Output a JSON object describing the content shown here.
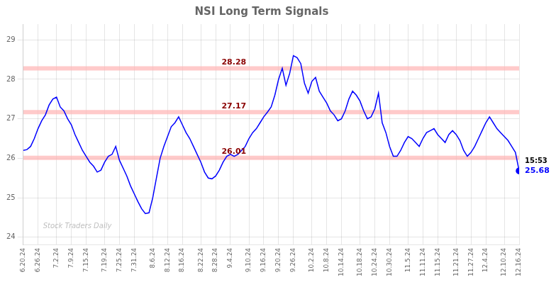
{
  "chart_data": {
    "type": "line",
    "title": "NSI Long Term Signals",
    "color": "blue",
    "grid": true,
    "ylim": [
      23.8,
      29.4
    ],
    "yticks": [
      24,
      25,
      26,
      27,
      28,
      29
    ],
    "hlines": [
      {
        "value": 26.01,
        "label": "26.01",
        "color": "#ffb3b3"
      },
      {
        "value": 27.17,
        "label": "27.17",
        "color": "#ffb3b3"
      },
      {
        "value": 28.28,
        "label": "28.28",
        "color": "#ffb3b3"
      }
    ],
    "last_label": "15:53",
    "last_value_label": "25.68",
    "watermark": "Stock Traders Daily",
    "categories": [
      "6.20.24",
      null,
      null,
      null,
      "6.26.24",
      null,
      null,
      null,
      null,
      "7.2.24",
      null,
      null,
      null,
      "7.9.24",
      null,
      null,
      null,
      "7.15.24",
      null,
      null,
      null,
      null,
      "7.19.24",
      null,
      null,
      null,
      "7.25.24",
      null,
      null,
      null,
      "7.31.24",
      null,
      null,
      null,
      null,
      "8.6.24",
      null,
      null,
      null,
      "8.12.24",
      null,
      null,
      null,
      "8.16.24",
      null,
      null,
      null,
      null,
      "8.22.24",
      null,
      null,
      null,
      "8.28.24",
      null,
      null,
      null,
      "9.4.24",
      null,
      null,
      null,
      null,
      "9.10.24",
      null,
      null,
      null,
      "9.16.24",
      null,
      null,
      null,
      "9.20.24",
      null,
      null,
      null,
      "9.26.24",
      null,
      null,
      null,
      null,
      "10.2.24",
      null,
      null,
      null,
      "10.8.24",
      null,
      null,
      null,
      "10.14.24",
      null,
      null,
      null,
      null,
      "10.18.24",
      null,
      null,
      null,
      "10.24.24",
      null,
      null,
      null,
      "10.30.24",
      null,
      null,
      null,
      null,
      "11.5.24",
      null,
      null,
      null,
      "11.11.24",
      null,
      null,
      null,
      "11.15.24",
      null,
      null,
      null,
      null,
      "11.21.24",
      null,
      null,
      null,
      "11.27.24",
      null,
      null,
      null,
      "12.4.24",
      null,
      null,
      null,
      null,
      "12.10.24",
      null,
      null,
      null,
      "12.16.24"
    ],
    "values": [
      26.2,
      26.22,
      26.3,
      26.5,
      26.75,
      26.95,
      27.1,
      27.35,
      27.5,
      27.55,
      27.3,
      27.2,
      27.0,
      26.85,
      26.6,
      26.4,
      26.2,
      26.05,
      25.9,
      25.8,
      25.65,
      25.7,
      25.9,
      26.05,
      26.1,
      26.3,
      25.95,
      25.75,
      25.55,
      25.3,
      25.1,
      24.9,
      24.72,
      24.6,
      24.62,
      25.0,
      25.5,
      26.0,
      26.3,
      26.55,
      26.8,
      26.9,
      27.05,
      26.85,
      26.65,
      26.5,
      26.3,
      26.1,
      25.9,
      25.65,
      25.5,
      25.48,
      25.55,
      25.7,
      25.9,
      26.05,
      26.1,
      26.05,
      26.1,
      26.2,
      26.3,
      26.5,
      26.65,
      26.75,
      26.9,
      27.05,
      27.17,
      27.3,
      27.6,
      28.0,
      28.28,
      27.85,
      28.15,
      28.6,
      28.55,
      28.4,
      27.9,
      27.65,
      27.95,
      28.05,
      27.7,
      27.55,
      27.4,
      27.2,
      27.1,
      26.95,
      27.0,
      27.2,
      27.5,
      27.7,
      27.6,
      27.45,
      27.2,
      27.0,
      27.05,
      27.25,
      27.65,
      26.9,
      26.65,
      26.3,
      26.05,
      26.05,
      26.2,
      26.4,
      26.55,
      26.5,
      26.4,
      26.3,
      26.5,
      26.65,
      26.7,
      26.75,
      26.6,
      26.5,
      26.4,
      26.6,
      26.7,
      26.6,
      26.45,
      26.2,
      26.05,
      26.15,
      26.3,
      26.5,
      26.7,
      26.9,
      27.05,
      26.9,
      26.75,
      26.65,
      26.55,
      26.45,
      26.3,
      26.15,
      25.68
    ]
  }
}
